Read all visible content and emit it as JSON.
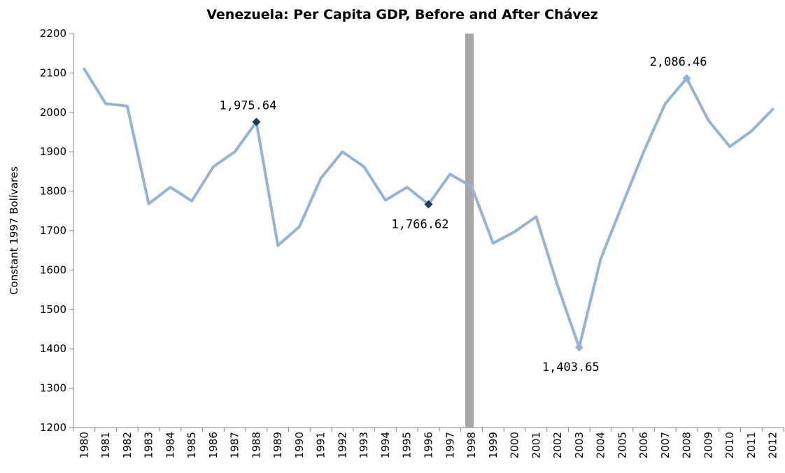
{
  "chart_data": {
    "type": "line",
    "title": "Venezuela: Per Capita GDP, Before and After Chávez",
    "xlabel": "",
    "ylabel": "Constant 1997 Bolívares",
    "ylim": [
      1200,
      2200
    ],
    "yticks": [
      "1200",
      "1300",
      "1400",
      "1500",
      "1600",
      "1700",
      "1800",
      "1900",
      "2000",
      "2100",
      "2200"
    ],
    "categories": [
      "1980",
      "1981",
      "1982",
      "1983",
      "1984",
      "1985",
      "1986",
      "1987",
      "1988",
      "1989",
      "1990",
      "1991",
      "1992",
      "1993",
      "1994",
      "1995",
      "1996",
      "1997",
      "1998",
      "1999",
      "2000",
      "2001",
      "2002",
      "2003",
      "2004",
      "2005",
      "2006",
      "2007",
      "2008",
      "2009",
      "2010",
      "2011",
      "2012"
    ],
    "series": [
      {
        "values": [
          2110,
          2022,
          2016,
          1768,
          1810,
          1775,
          1862,
          1900,
          1975.64,
          1662,
          1710,
          1833,
          1900,
          1862,
          1777,
          1810,
          1766.62,
          1843,
          1812,
          1668,
          1697,
          1735,
          1560,
          1403.65,
          1628,
          1765,
          1900,
          2022,
          2086.46,
          1980,
          1913,
          1952,
          2008
        ],
        "color": "#95b3d7"
      }
    ],
    "marker_color": "#1f3864",
    "divider": {
      "year": "1998",
      "color": "#a6a6a6"
    },
    "annotations": [
      {
        "year": "1988",
        "value": 1975.64,
        "label": "1,975.64",
        "position": "above",
        "marker": "dark"
      },
      {
        "year": "1996",
        "value": 1766.62,
        "label": "1,766.62",
        "position": "below",
        "marker": "dark"
      },
      {
        "year": "2003",
        "value": 1403.65,
        "label": "1,403.65",
        "position": "below",
        "marker": "light"
      },
      {
        "year": "2008",
        "value": 2086.46,
        "label": "2,086.46",
        "position": "above",
        "marker": "light"
      }
    ],
    "grid": false,
    "legend": "none"
  }
}
